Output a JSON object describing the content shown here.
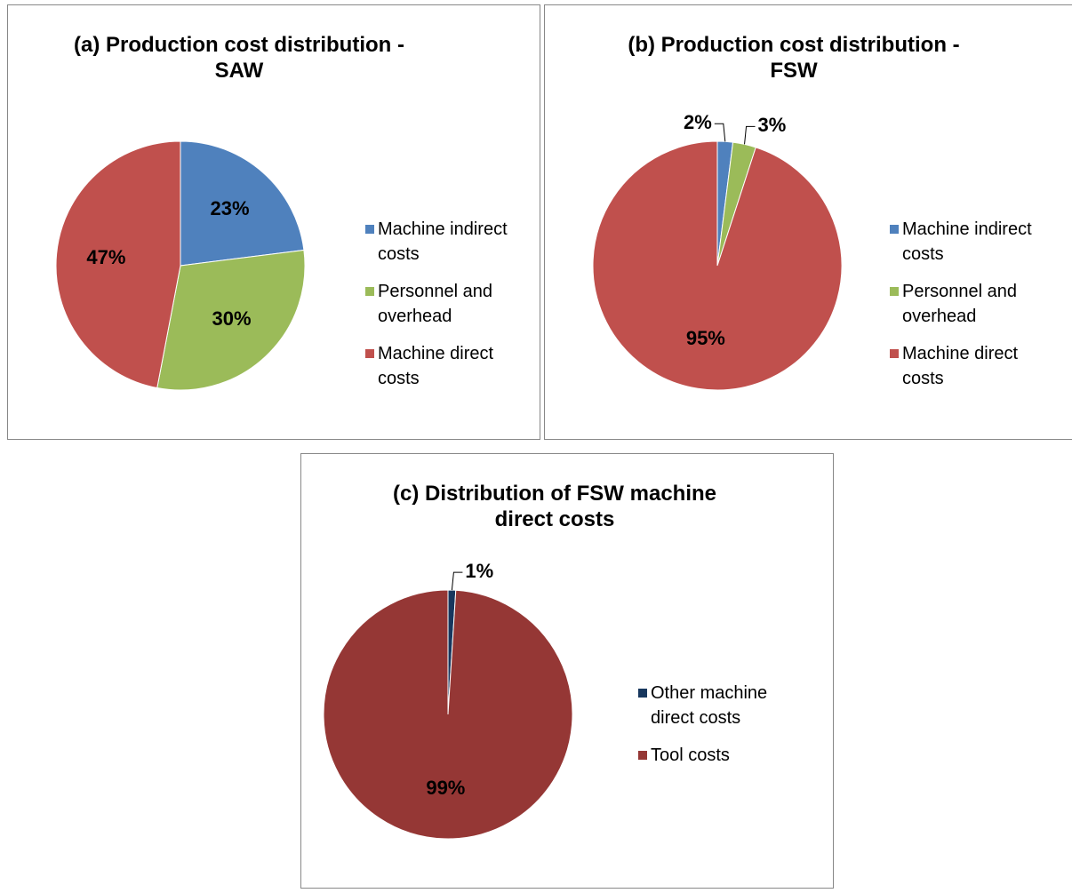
{
  "chart_data": [
    {
      "type": "pie",
      "title": "(a) Production cost distribution - SAW",
      "categories": [
        "Machine indirect costs",
        "Personnel and overhead",
        "Machine direct costs"
      ],
      "values": [
        23,
        30,
        47
      ],
      "value_labels": [
        "23%",
        "30%",
        "47%"
      ],
      "colors": [
        "#4f81bd",
        "#9bbb59",
        "#c0504d"
      ],
      "legend": "right"
    },
    {
      "type": "pie",
      "title": "(b) Production cost distribution - FSW",
      "categories": [
        "Machine indirect costs",
        "Personnel and overhead",
        "Machine direct costs"
      ],
      "values": [
        2,
        3,
        95
      ],
      "value_labels": [
        "2%",
        "3%",
        "95%"
      ],
      "colors": [
        "#4f81bd",
        "#9bbb59",
        "#c0504d"
      ],
      "legend": "right"
    },
    {
      "type": "pie",
      "title": "(c) Distribution of FSW machine direct costs",
      "categories": [
        "Other machine direct costs",
        "Tool costs"
      ],
      "values": [
        1,
        99
      ],
      "value_labels": [
        "1%",
        "99%"
      ],
      "colors": [
        "#17375e",
        "#953735"
      ],
      "legend": "right"
    }
  ]
}
